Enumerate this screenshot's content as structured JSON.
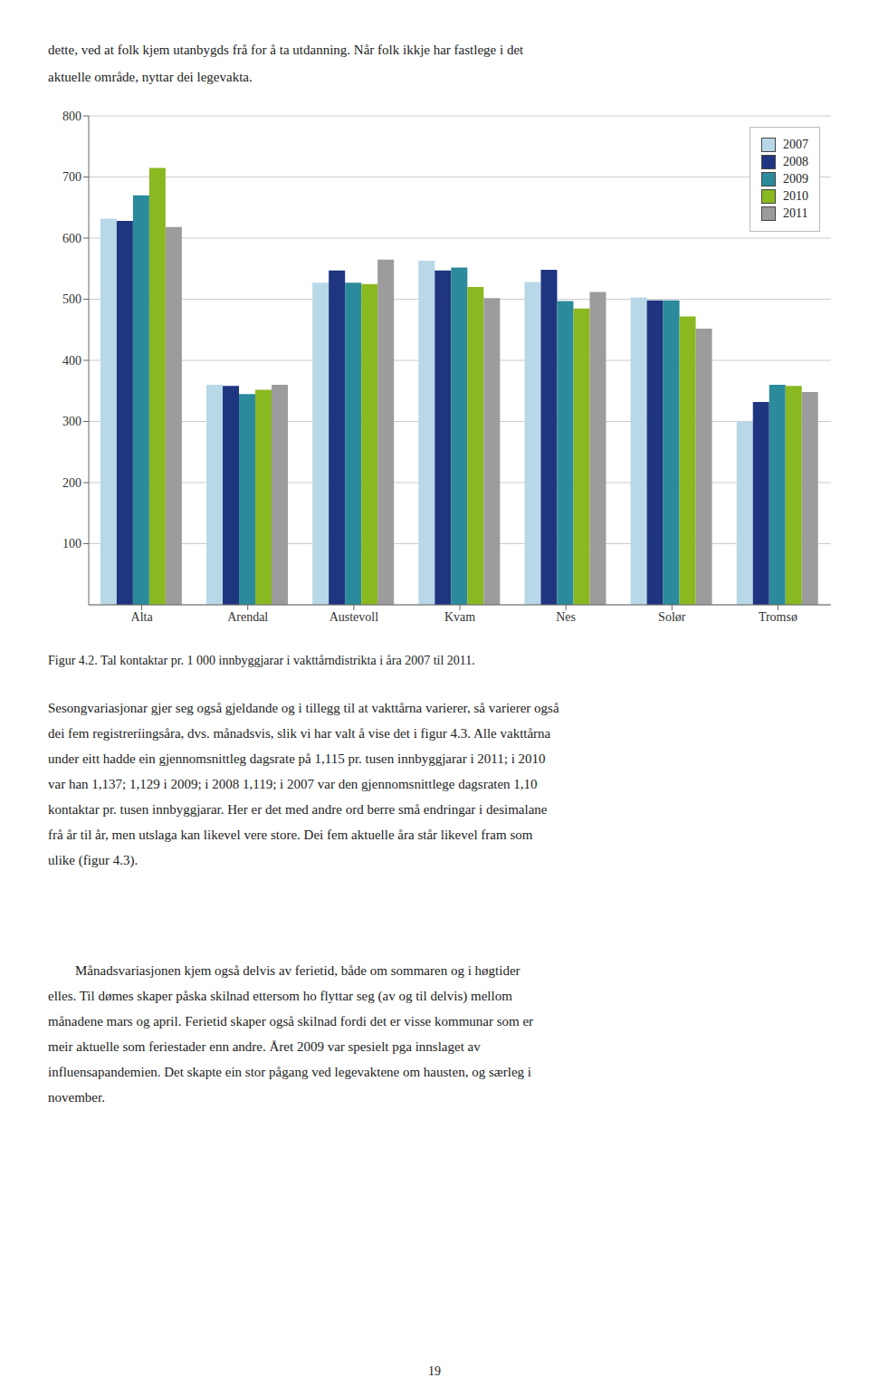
{
  "chart_data": {
    "type": "bar",
    "categories": [
      "Alta",
      "Arendal",
      "Austevoll",
      "Kvam",
      "Nes",
      "Solør",
      "Tromsø"
    ],
    "series": [
      {
        "name": "2007",
        "color": "#b8d8e8",
        "values": [
          632,
          360,
          527,
          563,
          528,
          503,
          300
        ]
      },
      {
        "name": "2008",
        "color": "#1f3580",
        "values": [
          628,
          358,
          547,
          547,
          548,
          498,
          332
        ]
      },
      {
        "name": "2009",
        "color": "#2b8a9c",
        "values": [
          670,
          345,
          527,
          552,
          497,
          498,
          360
        ]
      },
      {
        "name": "2010",
        "color": "#8ab820",
        "values": [
          715,
          352,
          525,
          520,
          485,
          472,
          358
        ]
      },
      {
        "name": "2011",
        "color": "#9c9c9c",
        "values": [
          618,
          360,
          565,
          502,
          512,
          452,
          348
        ]
      }
    ],
    "ylim": [
      0,
      800
    ],
    "yticks": [
      100,
      200,
      300,
      400,
      500,
      600,
      700,
      800
    ],
    "grid": true,
    "legend": "upper right",
    "annotations": [
      [
        "dette, ved at folk kjem utanbygds frå for å ta utdanning. Når folk ikkje har fastlege i det",
        "aktuelle område, nyttar dei legevakta."
      ],
      [
        "Figur 4.2. Tal kontaktar pr. 1 000 innbyggjarar i vakttårndistrikta i åra 2007 til 2011."
      ],
      [
        "Sesongvariasjonar gjer seg også gjeldande og i tillegg til at vakttårna varierer, så varierer også",
        "dei fem registreríingsåra, dvs. månadsvis, slik vi har valt å vise det i figur 4.3. Alle vakttårna",
        "under eitt hadde ein gjennomsnittleg dagsrate på 1,115 pr. tusen innbyggjarar i 2011; i 2010",
        "var han 1,137; 1,129 i 2009; i 2008 1,119; i 2007 var den gjennomsnittlege dagsraten 1,10",
        "kontaktar pr. tusen innbyggjarar. Her er det med andre ord berre små endringar i desimalane",
        "frå år til år, men utslaga kan likevel vere store. Dei fem aktuelle åra står likevel fram som",
        "ulike (figur 4.3)."
      ],
      [
        "        Månadsvariasjonen kjem også delvis av ferietid, både om sommaren og i høgtider",
        "elles. Til dømes skaper påska skilnad ettersom ho flyttar seg (av og til delvis) mellom",
        "månadene mars og april. Ferietid skaper også skilnad fordi det er visse kommunar som er",
        "meir aktuelle som feriestader enn andre. Året 2009 var spesielt pga innslaget av",
        "influensapandemien. Det skapte ein stor pågang ved legevaktene om hausten, og særleg i",
        "november."
      ],
      [
        "19"
      ]
    ]
  }
}
